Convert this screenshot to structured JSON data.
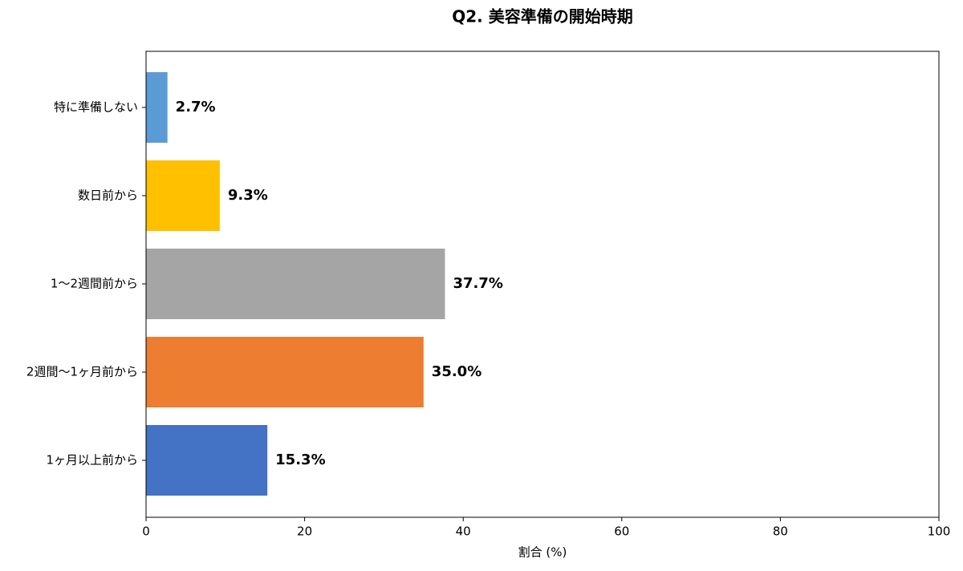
{
  "chart_data": {
    "type": "barh",
    "title": "Q2. 美容準備の開始時期",
    "x_label": "割合 (%)",
    "categories": [
      "特に準備しない",
      "数日前から",
      "1〜2週間前から",
      "2週間〜1ヶ月前から",
      "1ヶ月以上前から"
    ],
    "values": [
      2.7,
      9.3,
      37.7,
      35.0,
      15.3
    ],
    "value_labels": [
      "2.7%",
      "9.3%",
      "37.7%",
      "35.0%",
      "15.3%"
    ],
    "colors": [
      "#5b9bd5",
      "#ffc000",
      "#a5a5a5",
      "#ed7d31",
      "#4472c4"
    ],
    "xlim": [
      0,
      100
    ],
    "xticks": [
      0,
      20,
      40,
      60,
      80,
      100
    ]
  }
}
